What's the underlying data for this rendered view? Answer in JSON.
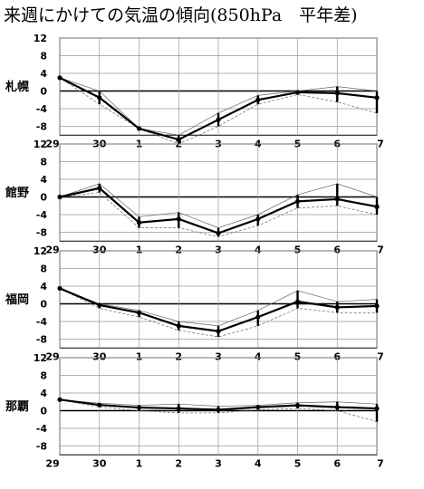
{
  "title": "来週にかけての気温の傾向(850hPa　平年差)",
  "chart_data": {
    "type": "line",
    "x": [
      "29",
      "30",
      "1",
      "2",
      "3",
      "4",
      "5",
      "6",
      "7"
    ],
    "yticks": [
      12,
      8,
      4,
      0,
      -4,
      -8
    ],
    "ylim": [
      -10,
      12
    ],
    "grid": true,
    "panels": [
      {
        "station": "札幌",
        "values": [
          3,
          -1.5,
          -8.5,
          -11,
          -6.5,
          -2,
          -0.3,
          -0.5,
          -1.5
        ],
        "spread_low": [
          3,
          -3,
          -8.5,
          -12,
          -8,
          -3,
          -0.8,
          -2.5,
          -5
        ],
        "spread_high": [
          3,
          0,
          -8.5,
          -10,
          -5,
          -1,
          0,
          1,
          0
        ]
      },
      {
        "station": "館野",
        "values": [
          0,
          2,
          -5.8,
          -5,
          -8.2,
          -5,
          -1,
          -0.5,
          -2.2
        ],
        "spread_low": [
          0,
          1,
          -7,
          -7,
          -9,
          -6.5,
          -2.5,
          -2,
          -4
        ],
        "spread_high": [
          0,
          3,
          -4.5,
          -3.5,
          -7,
          -4,
          0.5,
          3,
          0
        ]
      },
      {
        "station": "福岡",
        "values": [
          3.5,
          -0.3,
          -2,
          -5,
          -6.2,
          -3,
          0.5,
          -0.8,
          -0.5
        ],
        "spread_low": [
          3.5,
          -1,
          -3,
          -6,
          -7.5,
          -5,
          -1,
          -2,
          -2
        ],
        "spread_high": [
          3.5,
          0,
          -1.5,
          -4,
          -5,
          -1.5,
          3,
          0.5,
          1
        ]
      },
      {
        "station": "那覇",
        "values": [
          2.5,
          1.3,
          0.7,
          0.5,
          0.2,
          0.8,
          1.2,
          0.8,
          0.5
        ],
        "spread_low": [
          2.5,
          0.8,
          0,
          -0.5,
          -0.5,
          0.2,
          0.5,
          0,
          -2.5
        ],
        "spread_high": [
          2.5,
          1.7,
          1.2,
          1.5,
          1,
          1.2,
          1.8,
          2,
          1.5
        ]
      }
    ]
  }
}
